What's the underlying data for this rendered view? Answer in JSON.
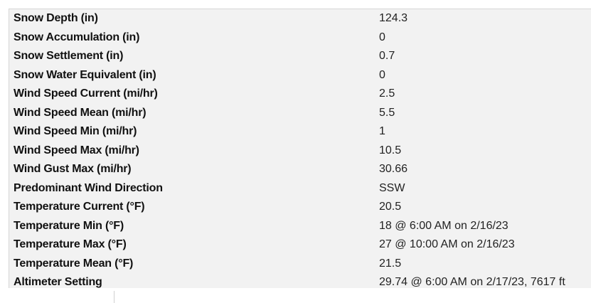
{
  "rows": [
    {
      "label": "Snow Depth (in)",
      "value": "124.3"
    },
    {
      "label": "Snow Accumulation (in)",
      "value": "0"
    },
    {
      "label": "Snow Settlement (in)",
      "value": "0.7"
    },
    {
      "label": "Snow Water Equivalent (in)",
      "value": "0"
    },
    {
      "label": "Wind Speed Current (mi/hr)",
      "value": "2.5"
    },
    {
      "label": "Wind Speed Mean (mi/hr)",
      "value": "5.5"
    },
    {
      "label": "Wind Speed Min (mi/hr)",
      "value": "1"
    },
    {
      "label": "Wind Speed Max (mi/hr)",
      "value": "10.5"
    },
    {
      "label": "Wind Gust Max (mi/hr)",
      "value": "30.66"
    },
    {
      "label": "Predominant Wind Direction",
      "value": "SSW"
    },
    {
      "label": "Temperature Current (°F)",
      "value": "20.5"
    },
    {
      "label": "Temperature Min (°F)",
      "value": "18 @ 6:00 AM on 2/16/23"
    },
    {
      "label": "Temperature Max (°F)",
      "value": "27 @ 10:00 AM on 2/16/23"
    },
    {
      "label": "Temperature Mean (°F)",
      "value": "21.5"
    },
    {
      "label": "Altimeter Setting",
      "value": "29.74 @ 6:00 AM on 2/17/23, 7617 ft"
    }
  ]
}
